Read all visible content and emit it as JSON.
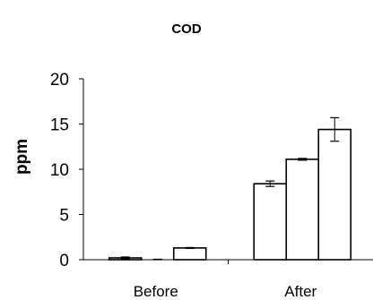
{
  "chart_data": {
    "type": "bar",
    "title": "COD",
    "xlabel": "",
    "ylabel": "ppm",
    "ylim": [
      0,
      20
    ],
    "yticks": [
      0,
      5,
      10,
      15,
      20
    ],
    "categories": [
      "Before",
      "After"
    ],
    "series": [
      {
        "values": [
          0.2,
          8.4
        ],
        "errors": [
          0.1,
          0.3
        ]
      },
      {
        "values": [
          0.0,
          11.1
        ],
        "errors": [
          0.05,
          0.1
        ]
      },
      {
        "values": [
          1.3,
          14.4
        ],
        "errors": [
          0.05,
          1.3
        ]
      }
    ],
    "grid": false,
    "legend": "none",
    "colors": {
      "bar_fill": "#ffffff",
      "bar_stroke": "#000000",
      "axis": "#000000"
    }
  }
}
